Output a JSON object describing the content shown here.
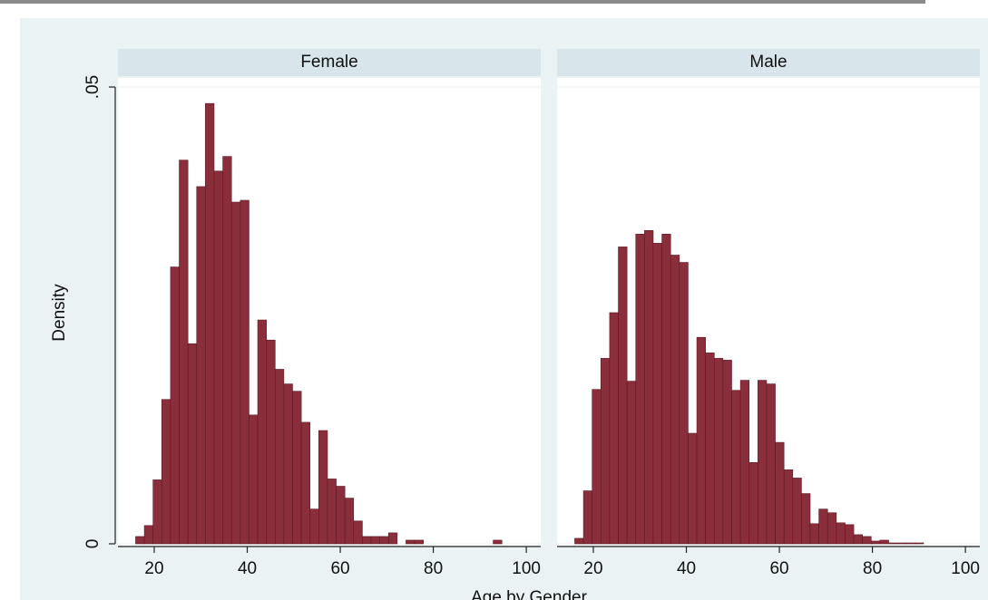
{
  "chart_data": {
    "type": "histogram",
    "ylabel": "Density",
    "xlabel": "Age by Gender",
    "color": "#8b2e3b",
    "edgecolor": "#5c1a24",
    "grid": true,
    "bins": [
      16,
      17.875,
      19.75,
      21.625,
      23.5,
      25.375,
      27.25,
      29.125,
      31,
      32.875,
      34.75,
      36.625,
      38.5,
      40.375,
      42.25,
      44.125,
      46,
      47.875,
      49.75,
      51.625,
      53.5,
      55.375,
      57.25,
      59.125,
      61,
      62.875,
      64.75,
      66.625,
      68.5,
      70.375,
      72.25,
      74.125,
      76,
      77.875,
      79.75,
      81.625,
      83.5,
      85.375,
      87.25,
      89.125,
      91,
      92.875,
      94.75,
      96.625
    ],
    "xlim": [
      12.2,
      103.1
    ],
    "xticks": [
      20,
      40,
      60,
      80,
      100
    ],
    "ylim": [
      0,
      0.05
    ],
    "yticks": [
      0,
      {
        "value": 0.05,
        "label": ".05"
      }
    ],
    "panels": [
      {
        "title": "Female",
        "values": [
          0.0008,
          0.002,
          0.007,
          0.0158,
          0.0303,
          0.042,
          0.0219,
          0.0391,
          0.0482,
          0.0408,
          0.0424,
          0.0374,
          0.0376,
          0.0141,
          0.0245,
          0.0223,
          0.0191,
          0.0175,
          0.0167,
          0.0133,
          0.0038,
          0.0124,
          0.0071,
          0.0063,
          0.005,
          0.0025,
          0.0008,
          0.0008,
          0.0008,
          0.0012,
          0,
          0.0004,
          0.0004,
          0,
          0,
          0,
          0,
          0,
          0,
          0,
          0,
          0.0004,
          0
        ]
      },
      {
        "title": "Male",
        "values": [
          0.0006,
          0.0058,
          0.0169,
          0.0203,
          0.0253,
          0.0325,
          0.0178,
          0.0339,
          0.0343,
          0.0329,
          0.0339,
          0.0316,
          0.0308,
          0.0121,
          0.0226,
          0.0209,
          0.0203,
          0.0201,
          0.0168,
          0.0179,
          0.0089,
          0.0179,
          0.0175,
          0.0111,
          0.0081,
          0.0072,
          0.0055,
          0.0022,
          0.0038,
          0.0034,
          0.0023,
          0.0021,
          0.001,
          0.0008,
          0.0003,
          0.0004,
          0.0001,
          0.0001,
          0.0001,
          0.0001,
          0,
          0,
          0
        ]
      }
    ]
  }
}
